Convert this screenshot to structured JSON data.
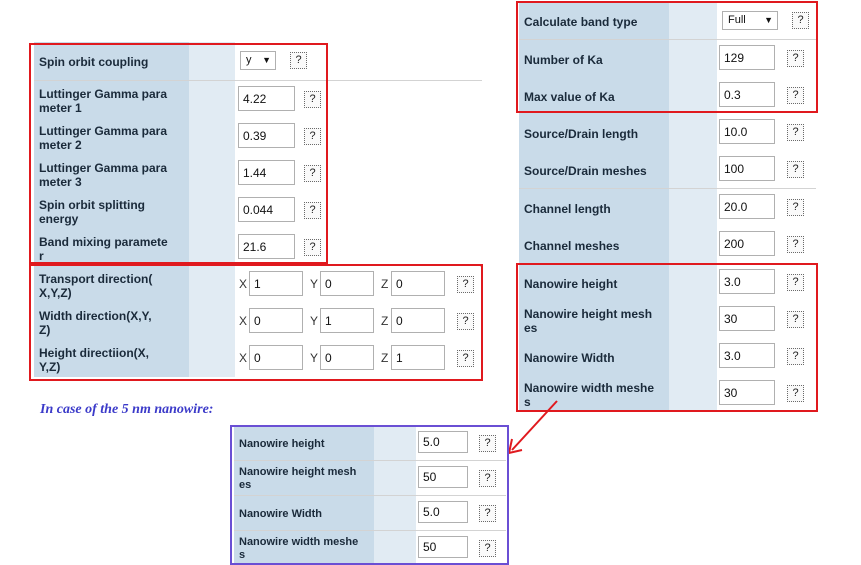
{
  "help_glyph": "?",
  "left_panel": {
    "spin_orbit": {
      "label": "Spin orbit coupling",
      "value": "y"
    },
    "gamma1": {
      "label_l1": "Luttinger Gamma para",
      "label_l2": "meter 1",
      "value": "4.22"
    },
    "gamma2": {
      "label_l1": "Luttinger Gamma para",
      "label_l2": "meter 2",
      "value": "0.39"
    },
    "gamma3": {
      "label_l1": "Luttinger Gamma para",
      "label_l2": "meter 3",
      "value": "1.44"
    },
    "splitting": {
      "label_l1": "Spin orbit splitting",
      "label_l2": "energy",
      "value": "0.044"
    },
    "band_mixing": {
      "label_l1": "Band mixing paramete",
      "label_l2": "r",
      "value": "21.6"
    }
  },
  "directions": {
    "axis_x": "X",
    "axis_y": "Y",
    "axis_z": "Z",
    "transport": {
      "label_l1": "Transport direction(",
      "label_l2": "X,Y,Z)",
      "x": "1",
      "y": "0",
      "z": "0"
    },
    "width": {
      "label_l1": "Width direction(X,Y,",
      "label_l2": "Z)",
      "x": "0",
      "y": "1",
      "z": "0"
    },
    "height": {
      "label_l1": "Height directiion(X,",
      "label_l2": "Y,Z)",
      "x": "0",
      "y": "0",
      "z": "1"
    }
  },
  "right_panel": {
    "band_type": {
      "label": "Calculate band type",
      "value": "Full"
    },
    "num_ka": {
      "label": "Number of Ka",
      "value": "129"
    },
    "max_ka": {
      "label": "Max value of Ka",
      "value": "0.3"
    },
    "sd_length": {
      "label": "Source/Drain length",
      "value": "10.0"
    },
    "sd_meshes": {
      "label": "Source/Drain meshes",
      "value": "100"
    },
    "channel_length": {
      "label": "Channel length",
      "value": "20.0"
    },
    "channel_meshes": {
      "label": "Channel meshes",
      "value": "200"
    },
    "nw_height": {
      "label": "Nanowire height",
      "value": "3.0"
    },
    "nw_height_meshes": {
      "label_l1": "Nanowire height mesh",
      "label_l2": "es",
      "value": "30"
    },
    "nw_width": {
      "label": "Nanowire Width",
      "value": "3.0"
    },
    "nw_width_meshes": {
      "label_l1": "Nanowire width meshe",
      "label_l2": "s",
      "value": "30"
    }
  },
  "note": "In case of  the  5 nm nanowire:",
  "nm5_panel": {
    "nw_height": {
      "label": "Nanowire height",
      "value": "5.0"
    },
    "nw_height_meshes": {
      "label_l1": "Nanowire height mesh",
      "label_l2": "es",
      "value": "50"
    },
    "nw_width": {
      "label": "Nanowire Width",
      "value": "5.0"
    },
    "nw_width_meshes": {
      "label_l1": "Nanowire width meshe",
      "label_l2": "s",
      "value": "50"
    }
  },
  "colors": {
    "highlight_red": "#e0191e",
    "highlight_purple": "#6a4fd4",
    "label_bg": "#c9dbe9",
    "note_text": "#3b3ac9"
  }
}
